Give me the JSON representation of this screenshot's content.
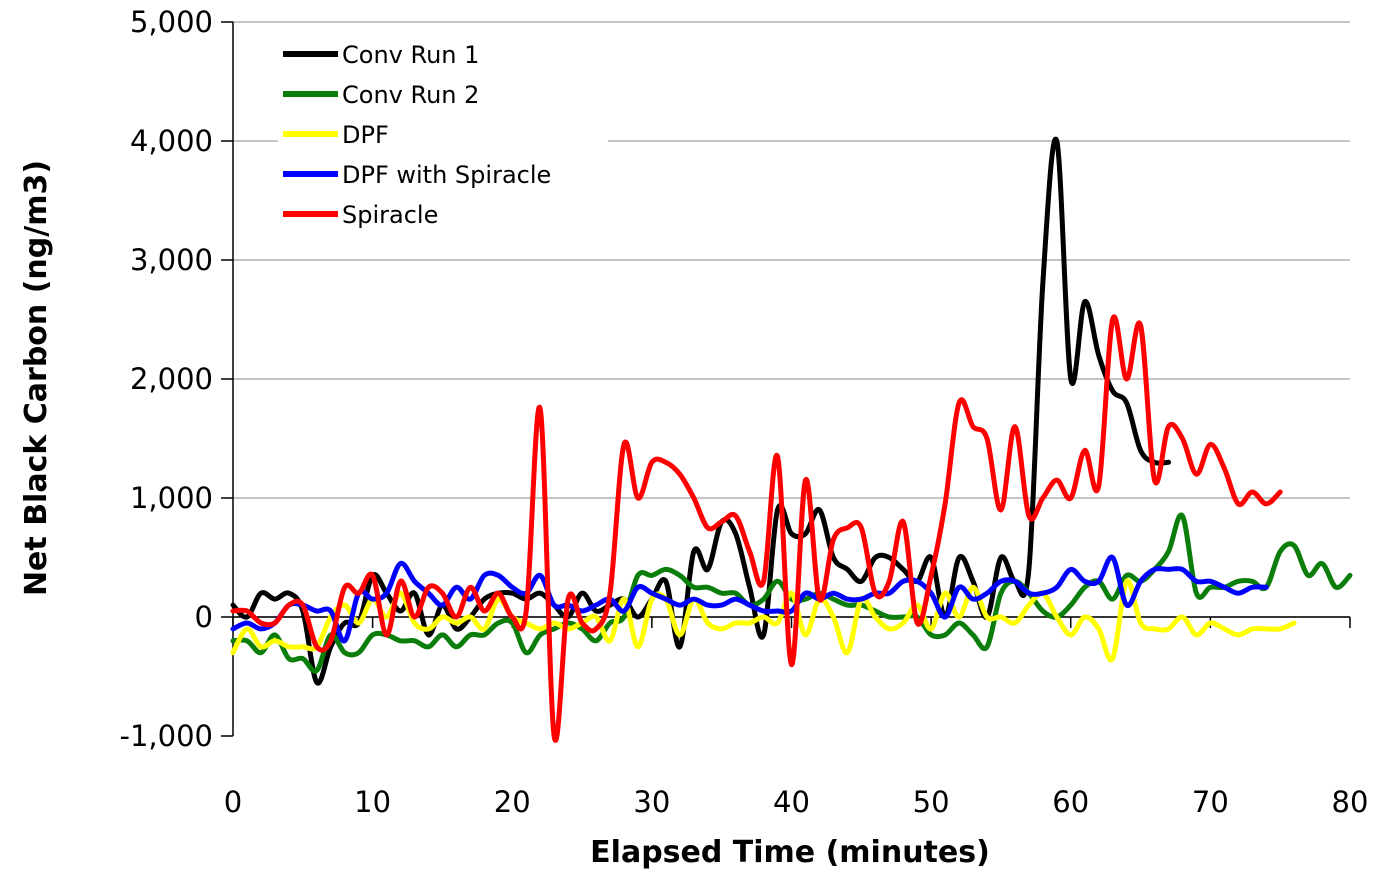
{
  "chart_data": {
    "type": "line",
    "title": "",
    "xlabel": "Elapsed Time (minutes)",
    "ylabel": "Net Black Carbon (ng/m3)",
    "xlim": [
      0,
      80
    ],
    "ylim": [
      -1000,
      5000
    ],
    "x_ticks": [
      0,
      10,
      20,
      30,
      40,
      50,
      60,
      70,
      80
    ],
    "y_ticks": [
      -1000,
      0,
      1000,
      2000,
      3000,
      4000,
      5000
    ],
    "x_tick_labels": [
      "0",
      "10",
      "20",
      "30",
      "40",
      "50",
      "60",
      "70",
      "80"
    ],
    "y_tick_labels": [
      "-1,000",
      "0",
      "1,000",
      "2,000",
      "3,000",
      "4,000",
      "5,000"
    ],
    "grid": "horizontal major gridlines",
    "legend_position": "top-left",
    "series": [
      {
        "name": "Conv Run 1",
        "color": "#000000",
        "x": [
          0,
          1,
          2,
          3,
          4,
          5,
          6,
          7,
          8,
          9,
          10,
          11,
          12,
          13,
          14,
          15,
          16,
          17,
          18,
          19,
          20,
          21,
          22,
          23,
          24,
          25,
          26,
          27,
          28,
          29,
          30,
          31,
          32,
          33,
          34,
          35,
          36,
          37,
          38,
          39,
          40,
          41,
          42,
          43,
          44,
          45,
          46,
          47,
          48,
          49,
          50,
          51,
          52,
          53,
          54,
          55,
          56,
          57,
          58,
          59,
          60,
          61,
          62,
          63,
          64,
          65,
          66,
          67
        ],
        "y": [
          100,
          0,
          200,
          150,
          200,
          50,
          -550,
          -250,
          -50,
          -50,
          350,
          200,
          50,
          200,
          -150,
          100,
          -100,
          0,
          150,
          200,
          200,
          150,
          200,
          100,
          0,
          200,
          50,
          100,
          150,
          0,
          150,
          300,
          -250,
          550,
          400,
          800,
          700,
          250,
          -150,
          900,
          700,
          700,
          900,
          500,
          400,
          300,
          500,
          500,
          400,
          300,
          500,
          0,
          500,
          300,
          0,
          500,
          300,
          400,
          2800,
          4000,
          2000,
          2650,
          2200,
          1900,
          1800,
          1400,
          1300,
          1300
        ]
      },
      {
        "name": "Conv Run 2",
        "color": "#0a7d0a",
        "x": [
          0,
          1,
          2,
          3,
          4,
          5,
          6,
          7,
          8,
          9,
          10,
          11,
          12,
          13,
          14,
          15,
          16,
          17,
          18,
          19,
          20,
          21,
          22,
          23,
          24,
          25,
          26,
          27,
          28,
          29,
          30,
          31,
          32,
          33,
          34,
          35,
          36,
          37,
          38,
          39,
          40,
          41,
          42,
          43,
          44,
          45,
          46,
          47,
          48,
          49,
          50,
          51,
          52,
          53,
          54,
          55,
          56,
          57,
          58,
          59,
          60,
          61,
          62,
          63,
          64,
          65,
          66,
          67,
          68,
          69,
          70,
          71,
          72,
          73,
          74,
          75,
          76,
          77,
          78,
          79,
          80
        ],
        "y": [
          -200,
          -200,
          -300,
          -150,
          -350,
          -350,
          -450,
          -150,
          -300,
          -300,
          -150,
          -150,
          -200,
          -200,
          -250,
          -150,
          -250,
          -150,
          -150,
          -50,
          -50,
          -300,
          -150,
          -100,
          -50,
          -100,
          -200,
          -50,
          0,
          350,
          350,
          400,
          350,
          250,
          250,
          200,
          200,
          100,
          150,
          300,
          150,
          150,
          200,
          150,
          100,
          100,
          50,
          0,
          0,
          0,
          -150,
          -150,
          -50,
          -150,
          -250,
          200,
          300,
          200,
          50,
          0,
          100,
          250,
          300,
          150,
          350,
          300,
          400,
          550,
          850,
          200,
          250,
          250,
          300,
          300,
          250,
          550,
          600,
          350,
          450,
          250,
          350
        ]
      },
      {
        "name": "DPF",
        "color": "#ffff00",
        "x": [
          0,
          1,
          2,
          3,
          4,
          5,
          6,
          7,
          8,
          9,
          10,
          11,
          12,
          13,
          14,
          15,
          16,
          17,
          18,
          19,
          20,
          21,
          22,
          23,
          24,
          25,
          26,
          27,
          28,
          29,
          30,
          31,
          32,
          33,
          34,
          35,
          36,
          37,
          38,
          39,
          40,
          41,
          42,
          43,
          44,
          45,
          46,
          47,
          48,
          49,
          50,
          51,
          52,
          53,
          54,
          55,
          56,
          57,
          58,
          59,
          60,
          61,
          62,
          63,
          64,
          65,
          66,
          67,
          68,
          69,
          70,
          71,
          72,
          73,
          74,
          75,
          76
        ],
        "y": [
          -300,
          -100,
          -250,
          -200,
          -250,
          -250,
          -250,
          0,
          100,
          -50,
          150,
          0,
          200,
          -50,
          -100,
          0,
          -50,
          0,
          -100,
          150,
          0,
          -50,
          -100,
          -50,
          -100,
          -50,
          0,
          -200,
          150,
          -250,
          150,
          150,
          -150,
          150,
          -50,
          -100,
          -50,
          -50,
          0,
          -50,
          200,
          -150,
          150,
          0,
          -300,
          150,
          0,
          -100,
          -50,
          100,
          -100,
          200,
          0,
          250,
          0,
          0,
          -50,
          100,
          200,
          0,
          -150,
          0,
          -100,
          -350,
          300,
          -50,
          -100,
          -100,
          0,
          -150,
          -50,
          -100,
          -150,
          -100,
          -100,
          -100,
          -50
        ]
      },
      {
        "name": "DPF with Spiracle",
        "color": "#0000ff",
        "x": [
          0,
          1,
          2,
          3,
          4,
          5,
          6,
          7,
          8,
          9,
          10,
          11,
          12,
          13,
          14,
          15,
          16,
          17,
          18,
          19,
          20,
          21,
          22,
          23,
          24,
          25,
          26,
          27,
          28,
          29,
          30,
          31,
          32,
          33,
          34,
          35,
          36,
          37,
          38,
          39,
          40,
          41,
          42,
          43,
          44,
          45,
          46,
          47,
          48,
          49,
          50,
          51,
          52,
          53,
          54,
          55,
          56,
          57,
          58,
          59,
          60,
          61,
          62,
          63,
          64,
          65,
          66,
          67,
          68,
          69,
          70,
          71,
          72,
          73,
          74
        ],
        "y": [
          -100,
          -50,
          -100,
          -50,
          100,
          100,
          50,
          50,
          -200,
          200,
          150,
          200,
          450,
          300,
          200,
          100,
          250,
          150,
          350,
          350,
          250,
          200,
          350,
          100,
          100,
          50,
          100,
          150,
          50,
          250,
          200,
          150,
          100,
          150,
          100,
          100,
          150,
          100,
          50,
          50,
          50,
          200,
          150,
          200,
          150,
          150,
          200,
          200,
          300,
          300,
          200,
          0,
          250,
          150,
          200,
          300,
          300,
          200,
          200,
          250,
          400,
          300,
          300,
          500,
          100,
          300,
          400,
          400,
          400,
          300,
          300,
          250,
          200,
          250,
          250
        ]
      },
      {
        "name": "Spiracle",
        "color": "#ff0000",
        "x": [
          0,
          1,
          2,
          3,
          4,
          5,
          6,
          7,
          8,
          9,
          10,
          11,
          12,
          13,
          14,
          15,
          16,
          17,
          18,
          19,
          20,
          21,
          22,
          23,
          24,
          25,
          26,
          27,
          28,
          29,
          30,
          31,
          32,
          33,
          34,
          35,
          36,
          37,
          38,
          39,
          40,
          41,
          42,
          43,
          44,
          45,
          46,
          47,
          48,
          49,
          50,
          51,
          52,
          53,
          54,
          55,
          56,
          57,
          58,
          59,
          60,
          61,
          62,
          63,
          64,
          65,
          66,
          67,
          68,
          69,
          70,
          71,
          72,
          73,
          74,
          75
        ],
        "y": [
          50,
          50,
          -50,
          -50,
          100,
          100,
          -250,
          -200,
          250,
          200,
          350,
          -150,
          300,
          0,
          250,
          200,
          0,
          250,
          50,
          200,
          0,
          50,
          1750,
          -1000,
          150,
          -50,
          -100,
          200,
          1450,
          1000,
          1300,
          1300,
          1200,
          1000,
          750,
          800,
          850,
          550,
          300,
          1350,
          -400,
          1150,
          150,
          650,
          750,
          750,
          200,
          300,
          800,
          -50,
          350,
          950,
          1800,
          1600,
          1500,
          900,
          1600,
          850,
          1000,
          1150,
          1000,
          1400,
          1100,
          2500,
          2000,
          2450,
          1150,
          1600,
          1500,
          1200,
          1450,
          1250,
          950,
          1050,
          950,
          1050
        ]
      }
    ]
  }
}
